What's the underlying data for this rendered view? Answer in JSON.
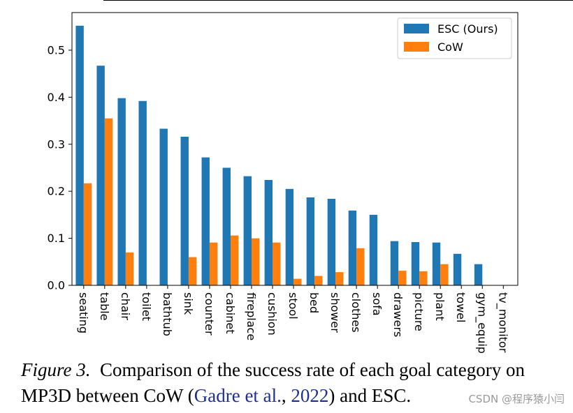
{
  "chart_data": {
    "type": "bar",
    "categories": [
      "seating",
      "table",
      "chair",
      "toilet",
      "bathtub",
      "sink",
      "counter",
      "cabinet",
      "fireplace",
      "cushion",
      "stool",
      "bed",
      "shower",
      "clothes",
      "sofa",
      "drawers",
      "picture",
      "plant",
      "towel",
      "gym_equip",
      "tv_monitor"
    ],
    "series": [
      {
        "name": "ESC (Ours)",
        "color": "#1f77b4",
        "values": [
          0.552,
          0.467,
          0.398,
          0.392,
          0.333,
          0.316,
          0.272,
          0.25,
          0.232,
          0.224,
          0.205,
          0.187,
          0.184,
          0.159,
          0.15,
          0.094,
          0.092,
          0.091,
          0.067,
          0.045,
          0.0
        ]
      },
      {
        "name": "CoW",
        "color": "#ff7f0e",
        "values": [
          0.217,
          0.355,
          0.07,
          0.0,
          0.0,
          0.06,
          0.091,
          0.106,
          0.1,
          0.091,
          0.014,
          0.02,
          0.028,
          0.079,
          0.0,
          0.031,
          0.03,
          0.045,
          0.0,
          0.0,
          0.0
        ]
      }
    ],
    "yticks": [
      "0.0",
      "0.1",
      "0.2",
      "0.3",
      "0.4",
      "0.5"
    ],
    "ylim": [
      0,
      0.58
    ],
    "legend_position": "upper-right",
    "xlabel": "",
    "ylabel": ""
  },
  "caption": {
    "figure_label": "Figure 3.",
    "text_1": "Comparison of the success rate of each goal category on MP3D between CoW (",
    "cite_author": "Gadre et al.",
    "cite_sep": ", ",
    "cite_year": "2022",
    "text_2": ") and ESC."
  },
  "watermark": "CSDN @程序猿小闫"
}
